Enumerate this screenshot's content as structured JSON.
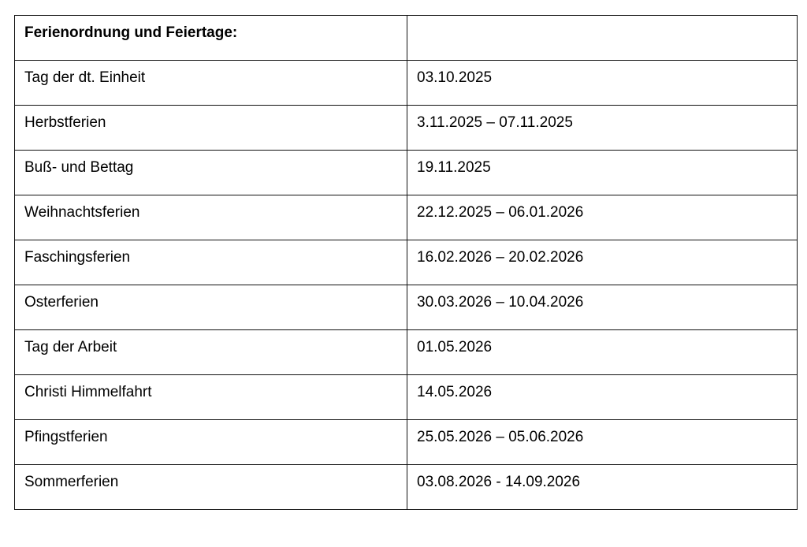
{
  "table": {
    "header": {
      "label": "Ferienordnung und Feiertage:",
      "value": ""
    },
    "rows": [
      {
        "label": "Tag der dt. Einheit",
        "value": "03.10.2025"
      },
      {
        "label": "Herbstferien",
        "value": "3.11.2025 – 07.11.2025"
      },
      {
        "label": "Buß- und Bettag",
        "value": "19.11.2025"
      },
      {
        "label": "Weihnachtsferien",
        "value": "22.12.2025 – 06.01.2026"
      },
      {
        "label": "Faschingsferien",
        "value": "16.02.2026 – 20.02.2026"
      },
      {
        "label": "Osterferien",
        "value": "30.03.2026 – 10.04.2026"
      },
      {
        "label": "Tag der Arbeit",
        "value": "01.05.2026"
      },
      {
        "label": "Christi Himmelfahrt",
        "value": "14.05.2026"
      },
      {
        "label": "Pfingstferien",
        "value": "25.05.2026 – 05.06.2026"
      },
      {
        "label": "Sommerferien",
        "value": "03.08.2026 - 14.09.2026"
      }
    ]
  }
}
